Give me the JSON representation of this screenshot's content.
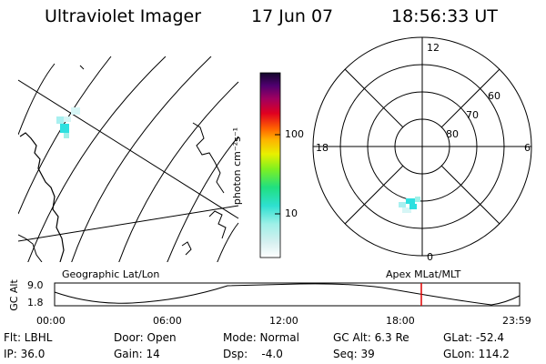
{
  "header": {
    "instrument": "Ultraviolet Imager",
    "date": "17 Jun 07",
    "time": "18:56:33 UT"
  },
  "colorbar": {
    "label": "photon cm⁻²s⁻¹",
    "ticks": [
      "100",
      "10"
    ]
  },
  "polar": {
    "mlt_labels": {
      "top": "12",
      "left": "18",
      "right": "6",
      "bottom": "0"
    },
    "lat_labels": [
      "60",
      "70",
      "80"
    ]
  },
  "timeline": {
    "left_caption": "Geographic Lat/Lon",
    "right_caption": "Apex MLat/MLT",
    "axis_label": "GC Alt",
    "y_ticks": [
      "9.0",
      "1.8"
    ],
    "x_ticks": [
      "00:00",
      "06:00",
      "12:00",
      "18:00",
      "23:59"
    ],
    "current_marker_color": "#e00000",
    "current_time_fraction": 0.789
  },
  "status": {
    "flt": "Flt: LBHL",
    "ip": "IP: 36.0",
    "door": "Door: Open",
    "gain": "Gain: 14",
    "mode": "Mode: Normal",
    "dsp": "Dsp:    -4.0",
    "gc_alt": "GC Alt: 6.3 Re",
    "seq": "Seq: 39",
    "glat": "GLat: -52.4",
    "glon": "GLon: 114.2"
  },
  "colors": {
    "colorbar_top": "#12062a",
    "aurora_cyan": "#2ee0e0"
  }
}
